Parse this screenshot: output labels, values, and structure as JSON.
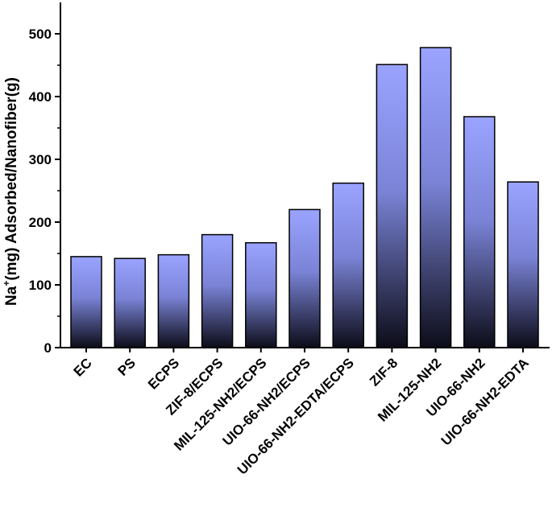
{
  "chart_data": {
    "type": "bar",
    "categories": [
      "EC",
      "PS",
      "ECPS",
      "ZIF-8/ECPS",
      "MIL-125-NH2/ECPS",
      "UIO-66-NH2/ECPS",
      "UIO-66-NH2-EDTA/ECPS",
      "ZIF-8",
      "MIL-125-NH2",
      "UIO-66-NH2",
      "UIO-66-NH2-EDTA"
    ],
    "values": [
      145,
      142,
      148,
      180,
      167,
      220,
      262,
      451,
      478,
      368,
      264
    ],
    "title": "",
    "xlabel": "",
    "ylabel_parts": [
      "Na",
      "+",
      "(mg) Adsorbed/Nanofiber(g)"
    ],
    "ylim": [
      0,
      550
    ],
    "yticks": [
      0,
      100,
      200,
      300,
      400,
      500
    ],
    "grid": false,
    "colors": {
      "bar_top": "#9aa4ff",
      "bar_bottom": "#0c0c18",
      "axis": "#000000"
    }
  }
}
